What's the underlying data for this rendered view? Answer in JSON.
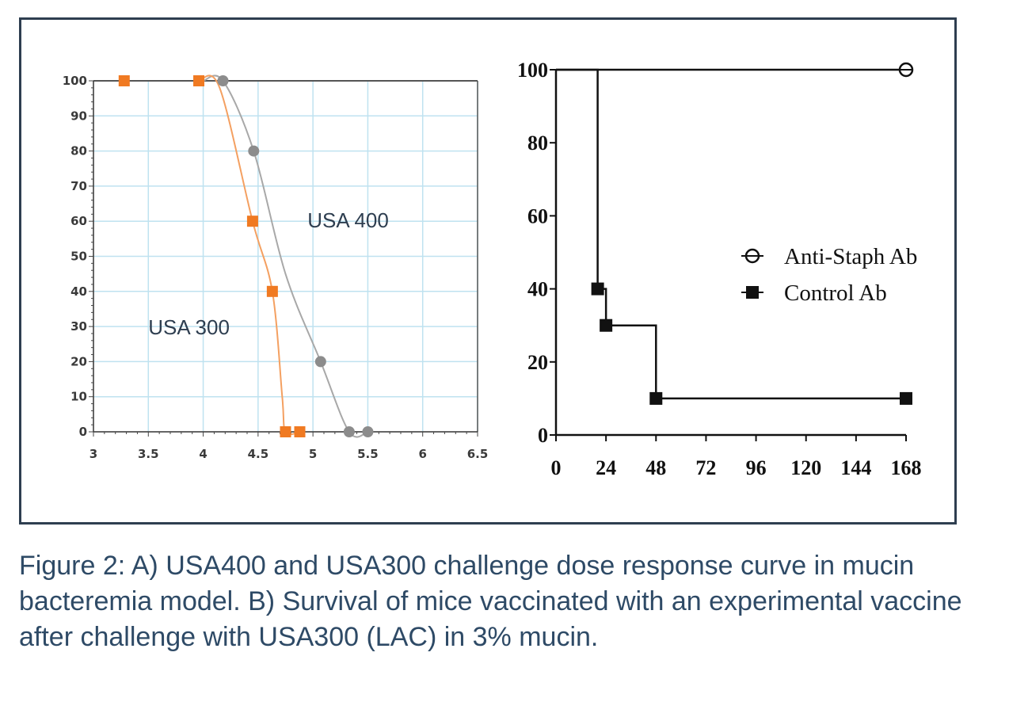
{
  "chart_data": [
    {
      "type": "line",
      "title": "",
      "xlabel": "",
      "ylabel": "",
      "xlim": [
        3,
        6.5
      ],
      "ylim": [
        0,
        100
      ],
      "x_ticks": [
        "3",
        "3.5",
        "4",
        "4.5",
        "5",
        "5.5",
        "6",
        "6.5"
      ],
      "y_ticks": [
        "0",
        "10",
        "20",
        "30",
        "40",
        "50",
        "60",
        "70",
        "80",
        "90",
        "100"
      ],
      "grid": true,
      "series": [
        {
          "name": "USA 400",
          "color": "#8c8c8c",
          "marker": "circle",
          "points": [
            {
              "x": 4.18,
              "y": 100
            },
            {
              "x": 4.46,
              "y": 80
            },
            {
              "x": 5.07,
              "y": 20
            },
            {
              "x": 5.33,
              "y": 0
            },
            {
              "x": 5.5,
              "y": 0
            }
          ]
        },
        {
          "name": "USA 300",
          "color": "#f07a22",
          "marker": "square",
          "points": [
            {
              "x": 3.28,
              "y": 100
            },
            {
              "x": 3.96,
              "y": 100
            },
            {
              "x": 4.45,
              "y": 60
            },
            {
              "x": 4.63,
              "y": 40
            },
            {
              "x": 4.75,
              "y": 0
            },
            {
              "x": 4.88,
              "y": 0
            }
          ]
        }
      ]
    },
    {
      "type": "line",
      "title": "",
      "xlabel": "",
      "ylabel": "",
      "xlim": [
        0,
        168
      ],
      "ylim": [
        0,
        100
      ],
      "x_ticks": [
        "0",
        "24",
        "48",
        "72",
        "96",
        "120",
        "144",
        "168"
      ],
      "y_ticks": [
        "0",
        "20",
        "40",
        "60",
        "80",
        "100"
      ],
      "step": true,
      "legend_position": "right",
      "series": [
        {
          "name": "Anti-Staph Ab",
          "marker": "open-circle",
          "steps": [
            {
              "x": 0,
              "y": 100
            },
            {
              "x": 168,
              "y": 100
            }
          ],
          "markers": [
            {
              "x": 168,
              "y": 100
            }
          ]
        },
        {
          "name": "Control Ab",
          "marker": "filled-square",
          "steps": [
            {
              "x": 0,
              "y": 100
            },
            {
              "x": 20,
              "y": 100
            },
            {
              "x": 20,
              "y": 40
            },
            {
              "x": 24,
              "y": 40
            },
            {
              "x": 24,
              "y": 30
            },
            {
              "x": 48,
              "y": 30
            },
            {
              "x": 48,
              "y": 10
            },
            {
              "x": 168,
              "y": 10
            }
          ],
          "markers": [
            {
              "x": 20,
              "y": 40
            },
            {
              "x": 24,
              "y": 30
            },
            {
              "x": 48,
              "y": 10
            },
            {
              "x": 168,
              "y": 10
            }
          ]
        }
      ]
    }
  ],
  "caption": "Figure 2: A) USA400 and USA300 challenge dose response curve in mucin bacteremia model. B) Survival of mice vaccinated with an experimental vaccine after challenge with USA300 (LAC) in 3% mucin."
}
